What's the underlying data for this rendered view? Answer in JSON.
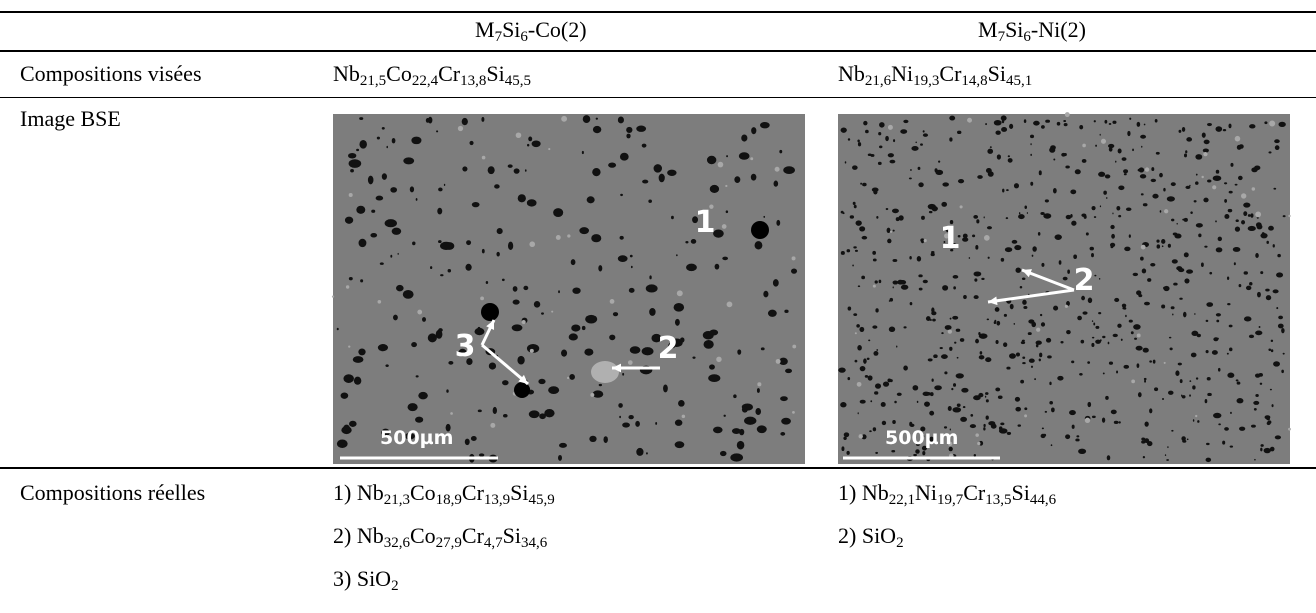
{
  "table": {
    "columns": [
      {
        "parts": [
          [
            "M",
            "7"
          ],
          [
            "Si",
            "6"
          ],
          [
            "-Co(2)"
          ]
        ]
      },
      {
        "parts": [
          [
            "M",
            "7"
          ],
          [
            "Si",
            "6"
          ],
          [
            "-Ni(2)"
          ]
        ]
      }
    ],
    "rows": [
      {
        "label": "Compositions visées",
        "cells": [
          {
            "parts": [
              [
                "Nb",
                "21,5"
              ],
              [
                "Co",
                "22,4"
              ],
              [
                "Cr",
                "13,8"
              ],
              [
                "Si",
                "45,5"
              ]
            ]
          },
          {
            "parts": [
              [
                "Nb",
                "21,6"
              ],
              [
                "Ni",
                "19,3"
              ],
              [
                "Cr",
                "14,8"
              ],
              [
                "Si",
                "45,1"
              ]
            ]
          }
        ]
      },
      {
        "label": "Image BSE",
        "images": [
          {
            "markers": [
              "1",
              "2",
              "3"
            ],
            "scale": "500µm"
          },
          {
            "markers": [
              "1",
              "2"
            ],
            "scale": "500µm"
          }
        ]
      },
      {
        "label": "Compositions réelles",
        "cells": [
          [
            {
              "index": "1)",
              "parts": [
                [
                  "Nb",
                  "21,3"
                ],
                [
                  "Co",
                  "18,9"
                ],
                [
                  "Cr",
                  "13,9"
                ],
                [
                  "Si",
                  "45,9"
                ]
              ]
            },
            {
              "index": "2)",
              "parts": [
                [
                  "Nb",
                  "32,6"
                ],
                [
                  "Co",
                  "27,9"
                ],
                [
                  "Cr",
                  "4,7"
                ],
                [
                  "Si",
                  "34,6"
                ]
              ]
            },
            {
              "index": "3)",
              "parts": [
                [
                  "SiO",
                  "2"
                ]
              ]
            }
          ],
          [
            {
              "index": "1)",
              "parts": [
                [
                  "Nb",
                  "22,1"
                ],
                [
                  "Ni",
                  "19,7"
                ],
                [
                  "Cr",
                  "13,5"
                ],
                [
                  "Si",
                  "44,6"
                ]
              ]
            },
            {
              "index": "2)",
              "parts": [
                [
                  "SiO",
                  "2"
                ]
              ]
            }
          ]
        ]
      }
    ]
  }
}
